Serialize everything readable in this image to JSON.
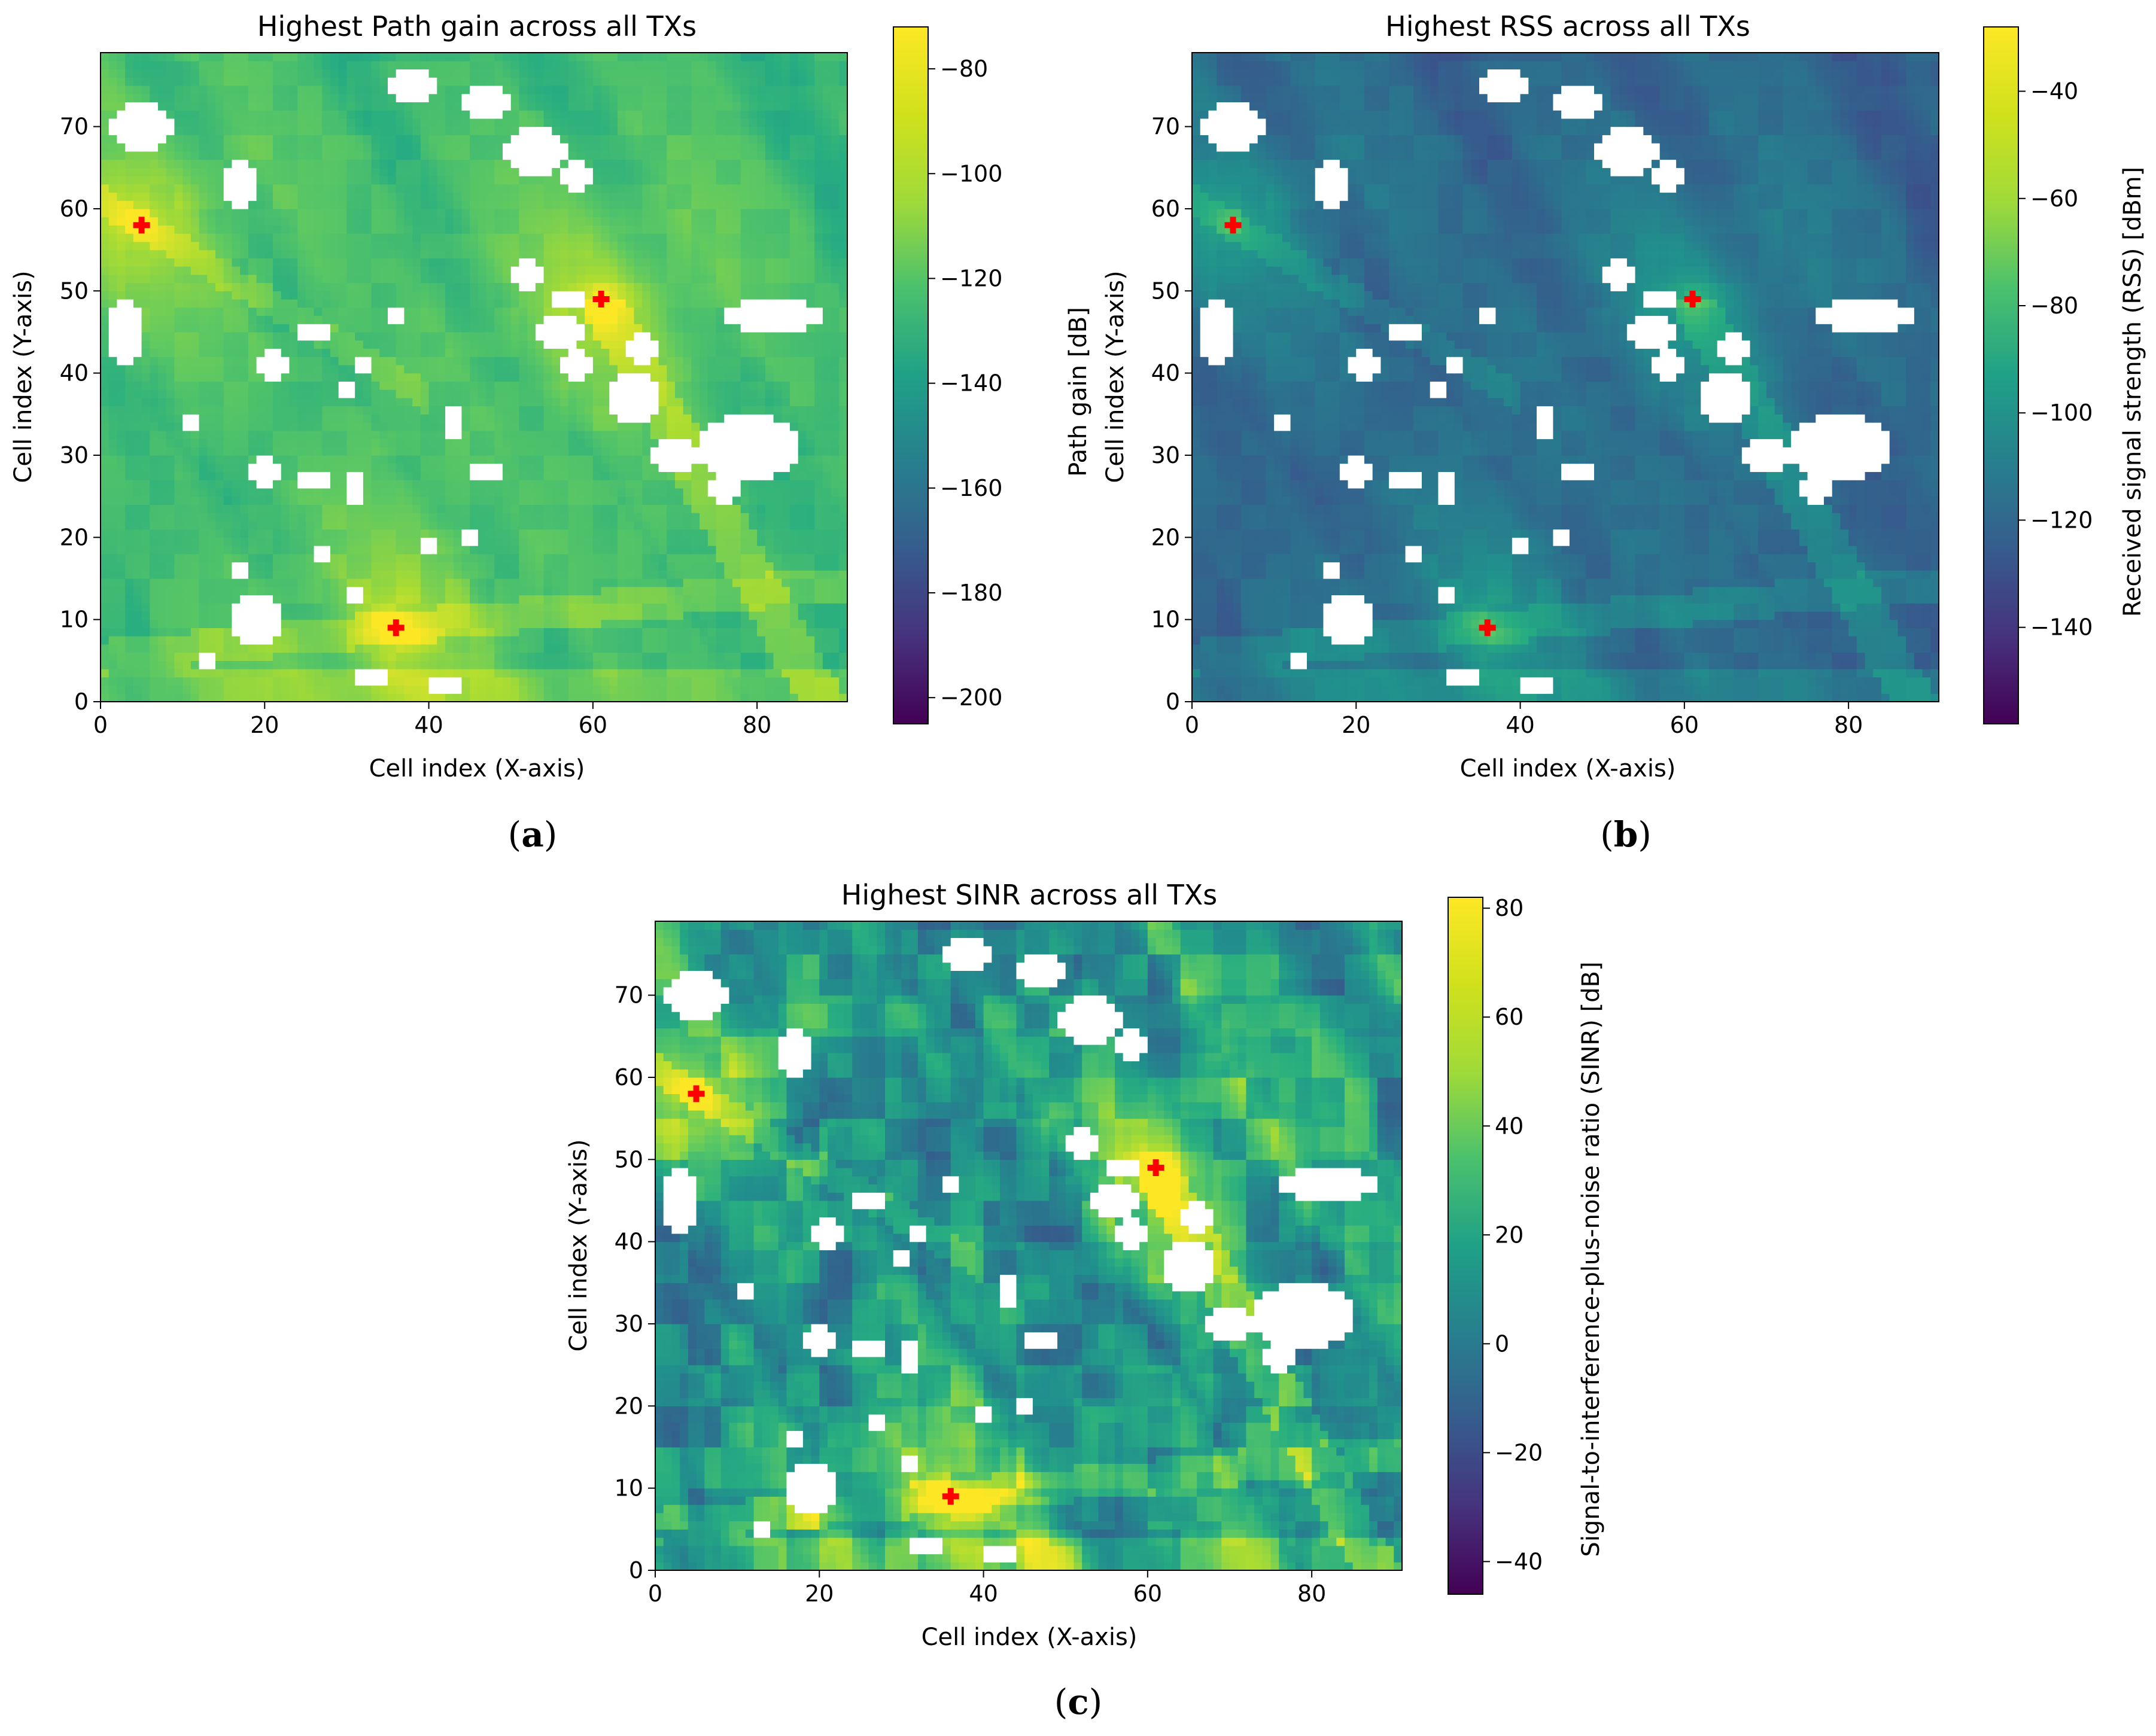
{
  "chart_data": [
    {
      "type": "heatmap",
      "panel": "a",
      "caption_letter": "a",
      "title": "Highest Path gain across all TXs",
      "xlabel": "Cell index (X-axis)",
      "ylabel": "Cell index (Y-axis)",
      "colorbar_label": "Path gain [dB]",
      "colormap": "viridis",
      "xlim": [
        0,
        91
      ],
      "ylim": [
        0,
        79
      ],
      "xticks": [
        0,
        20,
        40,
        60,
        80
      ],
      "yticks": [
        0,
        10,
        20,
        30,
        40,
        50,
        60,
        70
      ],
      "clim": [
        -205,
        -72
      ],
      "cticks": [
        -80,
        -100,
        -120,
        -140,
        -160,
        -180,
        -200
      ],
      "transmitters": [
        {
          "x": 5,
          "y": 58
        },
        {
          "x": 36,
          "y": 9
        },
        {
          "x": 61,
          "y": 49
        }
      ],
      "marker_color": "#ff0000"
    },
    {
      "type": "heatmap",
      "panel": "b",
      "caption_letter": "b",
      "title": "Highest RSS across all TXs",
      "xlabel": "Cell index (X-axis)",
      "ylabel": "Cell index (Y-axis)",
      "colorbar_label": "Received signal strength (RSS) [dBm]",
      "colormap": "viridis",
      "xlim": [
        0,
        91
      ],
      "ylim": [
        0,
        79
      ],
      "xticks": [
        0,
        20,
        40,
        60,
        80
      ],
      "yticks": [
        0,
        10,
        20,
        30,
        40,
        50,
        60,
        70
      ],
      "clim": [
        -158,
        -28
      ],
      "cticks": [
        -40,
        -60,
        -80,
        -100,
        -120,
        -140
      ],
      "transmitters": [
        {
          "x": 5,
          "y": 58
        },
        {
          "x": 36,
          "y": 9
        },
        {
          "x": 61,
          "y": 49
        }
      ],
      "marker_color": "#ff0000"
    },
    {
      "type": "heatmap",
      "panel": "c",
      "caption_letter": "c",
      "title": "Highest SINR across all TXs",
      "xlabel": "Cell index (X-axis)",
      "ylabel": "Cell index (Y-axis)",
      "colorbar_label": "Signal-to-interference-plus-noise ratio (SINR) [dB]",
      "colormap": "viridis",
      "xlim": [
        0,
        91
      ],
      "ylim": [
        0,
        79
      ],
      "xticks": [
        0,
        20,
        40,
        60,
        80
      ],
      "yticks": [
        0,
        10,
        20,
        30,
        40,
        50,
        60,
        70
      ],
      "clim": [
        -46,
        82
      ],
      "cticks": [
        80,
        60,
        40,
        20,
        0,
        -20,
        -40
      ],
      "transmitters": [
        {
          "x": 5,
          "y": 58
        },
        {
          "x": 36,
          "y": 9
        },
        {
          "x": 61,
          "y": 49
        }
      ],
      "marker_color": "#ff0000"
    }
  ]
}
